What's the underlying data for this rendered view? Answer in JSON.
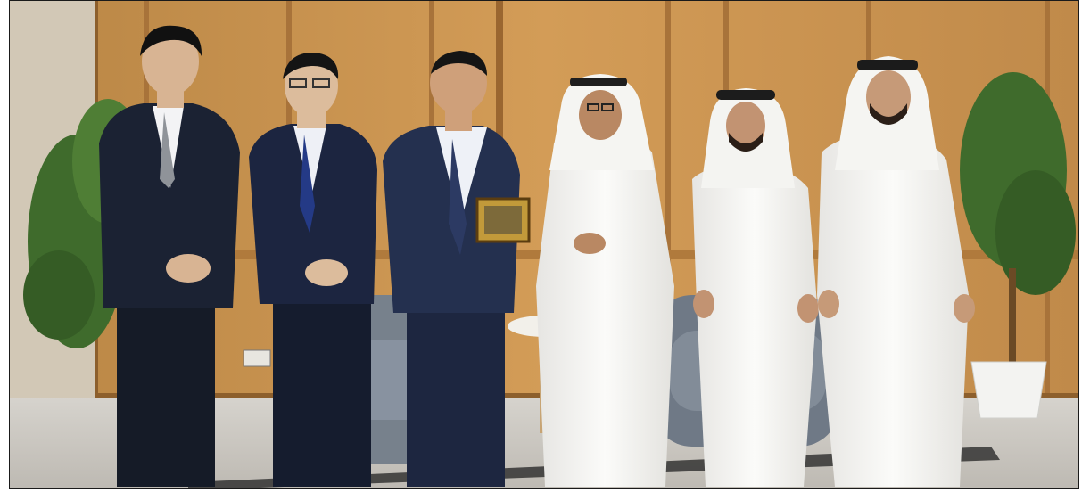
{
  "photo": {
    "scene": "",
    "people": [
      {
        "attire": "dark-suit"
      },
      {
        "attire": "dark-suit"
      },
      {
        "attire": "pinstripe-suit"
      },
      {
        "attire": "white-kandura"
      },
      {
        "attire": "white-kandura"
      },
      {
        "attire": "white-kandura"
      }
    ],
    "objects": [
      "wood-panel-wall",
      "potted-plant-left",
      "potted-plant-right",
      "grey-sofa",
      "grey-armchair",
      "round-side-table",
      "framed-plaque",
      "wall-socket"
    ],
    "colors": {
      "wood": "#c9924e",
      "wood_dark": "#9a6630",
      "suit": "#1b2233",
      "kandura": "#f2f1ee",
      "carpet": "#c9c6c0",
      "plant": "#3f6b2c",
      "sofa": "#77818c"
    }
  }
}
